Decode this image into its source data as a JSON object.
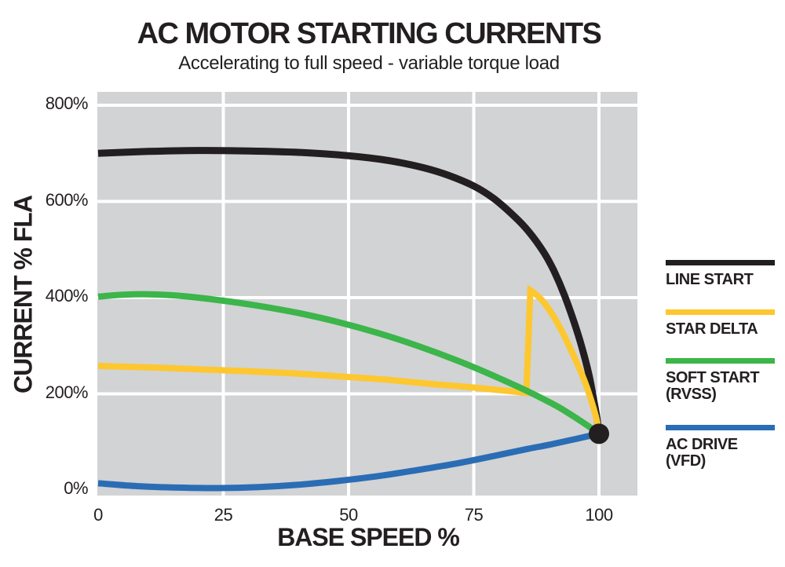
{
  "chart_data": {
    "type": "line",
    "title": "AC MOTOR STARTING CURRENTS",
    "subtitle": "Accelerating to full speed - variable torque load",
    "xlabel": "BASE SPEED %",
    "ylabel": "CURRENT % FLA",
    "xlim": [
      0,
      108
    ],
    "ylim": [
      -11,
      828
    ],
    "x_ticks": [
      0,
      25,
      50,
      75,
      100
    ],
    "x_tick_labels": [
      "0",
      "25",
      "50",
      "75",
      "100"
    ],
    "y_ticks": [
      0,
      200,
      400,
      600,
      800
    ],
    "y_tick_labels": [
      "0%",
      "200%",
      "400%",
      "600%",
      "800%"
    ],
    "grid": true,
    "gridline_color": "#FFFFFF",
    "plot_background": "#D2D3D5",
    "page_background": "#FFFFFF",
    "text_color": "#231F20",
    "legend_position": "right",
    "series": [
      {
        "name": "LINE START",
        "legend_lines": [
          "LINE START"
        ],
        "color": "#231F20",
        "line_width": 9,
        "segments": [
          {
            "smooth": true,
            "pts": [
              [
                0,
                700
              ],
              [
                10,
                704
              ],
              [
                20,
                706
              ],
              [
                30,
                705
              ],
              [
                40,
                702
              ],
              [
                50,
                695
              ],
              [
                58,
                685
              ],
              [
                65,
                670
              ],
              [
                70,
                654
              ],
              [
                75,
                632
              ],
              [
                79,
                606
              ],
              [
                83,
                570
              ],
              [
                86,
                537
              ],
              [
                89,
                494
              ],
              [
                91,
                456
              ],
              [
                93,
                408
              ],
              [
                95,
                350
              ],
              [
                96.5,
                300
              ],
              [
                98,
                240
              ],
              [
                99,
                185
              ],
              [
                99.6,
                150
              ],
              [
                100,
                118
              ]
            ]
          }
        ]
      },
      {
        "name": "STAR DELTA",
        "legend_lines": [
          "STAR DELTA"
        ],
        "color": "#FDC72F",
        "line_width": 8,
        "segments": [
          {
            "smooth": true,
            "pts": [
              [
                0,
                258
              ],
              [
                10,
                255
              ],
              [
                20,
                251
              ],
              [
                30,
                247
              ],
              [
                40,
                242
              ],
              [
                50,
                235
              ],
              [
                58,
                229
              ],
              [
                66,
                221
              ],
              [
                74,
                214
              ],
              [
                80,
                208
              ],
              [
                85.5,
                202
              ]
            ]
          },
          {
            "smooth": false,
            "pts": [
              [
                85.5,
                202
              ],
              [
                86.3,
                415
              ]
            ]
          },
          {
            "smooth": true,
            "pts": [
              [
                86.3,
                415
              ],
              [
                87.5,
                406
              ],
              [
                89,
                390
              ],
              [
                91,
                360
              ],
              [
                93,
                322
              ],
              [
                95,
                278
              ],
              [
                97,
                230
              ],
              [
                98.5,
                185
              ],
              [
                99.5,
                148
              ],
              [
                100,
                120
              ]
            ]
          }
        ]
      },
      {
        "name": "SOFT START (RVSS)",
        "legend_lines": [
          "SOFT START",
          "(RVSS)"
        ],
        "color": "#3CB54A",
        "line_width": 8,
        "segments": [
          {
            "smooth": true,
            "pts": [
              [
                0,
                402
              ],
              [
                5,
                406
              ],
              [
                10,
                407
              ],
              [
                16,
                404
              ],
              [
                24,
                395
              ],
              [
                32,
                383
              ],
              [
                40,
                368
              ],
              [
                48,
                349
              ],
              [
                56,
                326
              ],
              [
                64,
                299
              ],
              [
                72,
                268
              ],
              [
                78,
                242
              ],
              [
                84,
                214
              ],
              [
                88,
                194
              ],
              [
                92,
                172
              ],
              [
                96,
                146
              ],
              [
                100,
                118
              ]
            ]
          }
        ]
      },
      {
        "name": "AC DRIVE (VFD)",
        "legend_lines": [
          "AC DRIVE",
          "(VFD)"
        ],
        "color": "#2A6DB5",
        "line_width": 8,
        "segments": [
          {
            "smooth": true,
            "pts": [
              [
                0,
                14
              ],
              [
                8,
                8
              ],
              [
                16,
                5
              ],
              [
                24,
                4
              ],
              [
                32,
                6
              ],
              [
                40,
                11
              ],
              [
                48,
                19
              ],
              [
                56,
                29
              ],
              [
                64,
                42
              ],
              [
                72,
                56
              ],
              [
                80,
                73
              ],
              [
                86,
                86
              ],
              [
                90,
                94
              ],
              [
                94,
                103
              ],
              [
                97,
                110
              ],
              [
                100,
                117
              ]
            ]
          }
        ]
      }
    ],
    "end_marker": {
      "x": 100,
      "y": 117,
      "radius": 13,
      "color": "#231F20"
    }
  }
}
